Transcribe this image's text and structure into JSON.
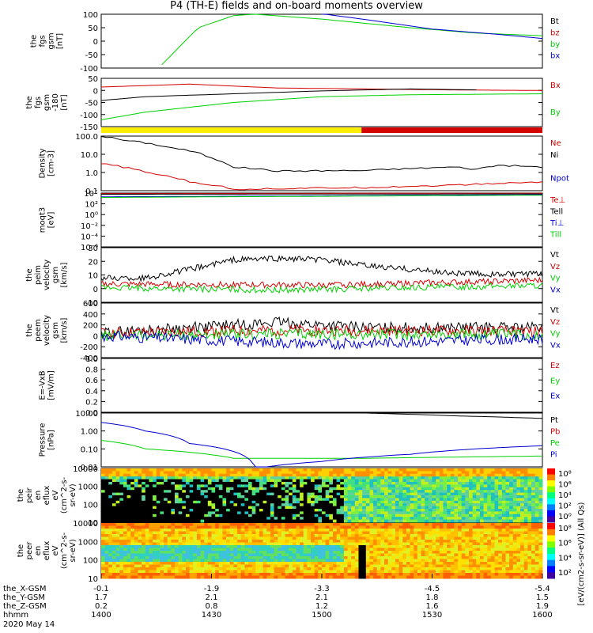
{
  "title": "P4 (TH-E) fields and on-board moments overview",
  "date_label": "2020 May 14",
  "colors": {
    "black": "#000000",
    "red": "#d40000",
    "green": "#00d000",
    "blue": "#0000d0",
    "yellow": "#ffee00"
  },
  "chart_data": [
    {
      "type": "line",
      "ylabel_lines": [
        "the",
        "fgs",
        "gsm",
        "[nT]"
      ],
      "ylim": [
        -100,
        100
      ],
      "yticks": [
        "100",
        "50",
        "0",
        "-50",
        "-100"
      ],
      "series": [
        {
          "name": "Bt",
          "color": "black",
          "values": []
        },
        {
          "name": "bz",
          "color": "red",
          "values": []
        },
        {
          "name": "by",
          "color": "green",
          "values": [
            [
              0.13,
              -100
            ],
            [
              0.22,
              50
            ],
            [
              0.3,
              95
            ],
            [
              0.35,
              100
            ],
            [
              0.5,
              82
            ],
            [
              0.7,
              50
            ],
            [
              0.85,
              30
            ],
            [
              1.0,
              20
            ]
          ]
        },
        {
          "name": "bx",
          "color": "blue",
          "values": [
            [
              0.5,
              102
            ],
            [
              0.6,
              80
            ],
            [
              0.75,
              45
            ],
            [
              0.9,
              25
            ],
            [
              1.0,
              10
            ]
          ]
        }
      ]
    },
    {
      "type": "line",
      "ylabel_lines": [
        "the",
        "fgs",
        "gsm",
        "-180",
        "[nT]"
      ],
      "ylim": [
        -175,
        75
      ],
      "yticks": [
        "50",
        "0",
        "-50",
        "-100",
        "-150"
      ],
      "series": [
        {
          "name": "Bx",
          "color": "red",
          "values": [
            [
              0,
              30
            ],
            [
              0.2,
              45
            ],
            [
              0.4,
              25
            ],
            [
              0.6,
              20
            ],
            [
              0.8,
              15
            ],
            [
              1.0,
              12
            ]
          ]
        },
        {
          "name": "",
          "color": "black",
          "values": [
            [
              0,
              -40
            ],
            [
              0.1,
              -20
            ],
            [
              0.3,
              -5
            ],
            [
              0.5,
              10
            ],
            [
              0.7,
              20
            ],
            [
              0.85,
              15
            ]
          ]
        },
        {
          "name": "By",
          "color": "green",
          "values": [
            [
              0,
              -140
            ],
            [
              0.1,
              -100
            ],
            [
              0.3,
              -50
            ],
            [
              0.5,
              -20
            ],
            [
              0.7,
              -10
            ],
            [
              1.0,
              -5
            ]
          ]
        }
      ]
    },
    {
      "type": "bar_strip",
      "segments": [
        {
          "from": 0,
          "to": 0.59,
          "color": "yellow"
        },
        {
          "from": 0.59,
          "to": 1.0,
          "color": "red"
        }
      ]
    },
    {
      "type": "line",
      "log": true,
      "ylabel_lines": [
        "Density",
        "[cm-3]"
      ],
      "ylim": [
        0.1,
        100
      ],
      "yticks": [
        "100.0",
        "10.0",
        "1.0",
        "0.1"
      ],
      "series": [
        {
          "name": "Ne",
          "color": "red",
          "values": []
        },
        {
          "name": "Ni",
          "color": "black",
          "values": [
            [
              0,
              100
            ],
            [
              0.05,
              60
            ],
            [
              0.15,
              25
            ],
            [
              0.25,
              6
            ],
            [
              0.3,
              2
            ],
            [
              0.4,
              1.2
            ],
            [
              0.6,
              1.3
            ],
            [
              0.8,
              2
            ],
            [
              0.85,
              1.5
            ],
            [
              0.9,
              2.5
            ],
            [
              1.0,
              2
            ]
          ]
        },
        {
          "name": "",
          "color": "red",
          "values": [
            [
              0,
              3
            ],
            [
              0.1,
              1
            ],
            [
              0.2,
              0.3
            ],
            [
              0.3,
              0.12
            ],
            [
              0.6,
              0.15
            ],
            [
              0.8,
              0.2
            ],
            [
              1.0,
              0.3
            ]
          ]
        },
        {
          "name": "Npot",
          "color": "blue",
          "values": []
        }
      ]
    },
    {
      "type": "line",
      "log": true,
      "ylabel_lines": [
        "moqt3",
        "[eV]"
      ],
      "ylim": [
        1e-06,
        10000
      ],
      "yticks": [
        "10´",
        "10²",
        "10⁰",
        "10⁻²",
        "10⁻⁴",
        "10⁻⁶"
      ],
      "series": [
        {
          "name": "Te⊥",
          "color": "red",
          "values": [
            [
              0,
              8000
            ],
            [
              0.6,
              9000
            ],
            [
              1.0,
              9500
            ]
          ]
        },
        {
          "name": "Tell",
          "color": "black",
          "values": [
            [
              0,
              6000
            ],
            [
              1.0,
              7000
            ]
          ]
        },
        {
          "name": "Ti⊥",
          "color": "blue",
          "values": [
            [
              0,
              2000
            ],
            [
              0.5,
              3000
            ],
            [
              1.0,
              5000
            ]
          ]
        },
        {
          "name": "Till",
          "color": "green",
          "values": [
            [
              0,
              1500
            ],
            [
              0.5,
              2500
            ],
            [
              1.0,
              4000
            ]
          ]
        }
      ]
    },
    {
      "type": "line",
      "ylabel_lines": [
        "the",
        "peim",
        "velocity",
        "gsm",
        "[km/s]"
      ],
      "ylim": [
        -15,
        30
      ],
      "yticks": [
        "30",
        "20",
        "10",
        "0",
        "-10"
      ],
      "series": [
        {
          "name": "Vt",
          "color": "black",
          "values": [
            [
              0,
              5
            ],
            [
              0.1,
              5
            ],
            [
              0.2,
              12
            ],
            [
              0.3,
              20
            ],
            [
              0.4,
              21
            ],
            [
              0.5,
              20
            ],
            [
              0.6,
              15
            ],
            [
              0.7,
              12
            ],
            [
              0.8,
              9
            ],
            [
              0.9,
              8
            ],
            [
              1.0,
              8
            ]
          ]
        },
        {
          "name": "Vz",
          "color": "red",
          "values": [
            [
              0,
              0
            ],
            [
              0.5,
              -1
            ],
            [
              1.0,
              3
            ]
          ]
        },
        {
          "name": "Vy",
          "color": "green",
          "values": [
            [
              0,
              -3
            ],
            [
              0.4,
              -5
            ],
            [
              1.0,
              -1
            ]
          ]
        },
        {
          "name": "Vx",
          "color": "blue",
          "values": []
        }
      ]
    },
    {
      "type": "line",
      "ylabel_lines": [
        "the",
        "peem",
        "velocity",
        "gsm",
        "[km/s]"
      ],
      "ylim": [
        -400,
        600
      ],
      "yticks": [
        "600",
        "400",
        "200",
        "0",
        "-200",
        "-400"
      ],
      "series": [
        {
          "name": "Vt",
          "color": "black",
          "values": [
            [
              0,
              50
            ],
            [
              0.2,
              150
            ],
            [
              0.4,
              250
            ],
            [
              0.6,
              150
            ],
            [
              1.0,
              150
            ]
          ]
        },
        {
          "name": "Vz",
          "color": "red",
          "values": [
            [
              0,
              50
            ],
            [
              0.4,
              100
            ],
            [
              1.0,
              80
            ]
          ]
        },
        {
          "name": "Vy",
          "color": "green",
          "values": [
            [
              0,
              0
            ],
            [
              0.4,
              30
            ],
            [
              1.0,
              20
            ]
          ]
        },
        {
          "name": "Vx",
          "color": "blue",
          "values": [
            [
              0,
              0
            ],
            [
              0.3,
              -100
            ],
            [
              0.5,
              -150
            ],
            [
              1.0,
              -50
            ]
          ]
        }
      ]
    },
    {
      "type": "line",
      "ylabel_lines": [
        "E=-VxB",
        "[mV/m]"
      ],
      "ylim": [
        0,
        1
      ],
      "yticks": [
        "1.0",
        "0.8",
        "0.6",
        "0.4",
        "0.2",
        "0.0"
      ],
      "series": [
        {
          "name": "Ez",
          "color": "red",
          "values": []
        },
        {
          "name": "Ey",
          "color": "green",
          "values": []
        },
        {
          "name": "Ex",
          "color": "blue",
          "values": []
        }
      ]
    },
    {
      "type": "line",
      "log": true,
      "ylabel_lines": [
        "Pressure",
        "[nPa]"
      ],
      "ylim": [
        0.01,
        10
      ],
      "yticks": [
        "10.00",
        "1.00",
        "0.10",
        "0.01"
      ],
      "series": [
        {
          "name": "Pt",
          "color": "black",
          "values": [
            [
              0.6,
              10
            ],
            [
              0.8,
              7
            ],
            [
              1.0,
              5
            ]
          ]
        },
        {
          "name": "Pb",
          "color": "red",
          "values": []
        },
        {
          "name": "Pe",
          "color": "green",
          "values": [
            [
              0,
              0.3
            ],
            [
              0.1,
              0.1
            ],
            [
              0.3,
              0.03
            ],
            [
              0.6,
              0.03
            ],
            [
              1.0,
              0.04
            ]
          ]
        },
        {
          "name": "Pi",
          "color": "blue",
          "values": [
            [
              0,
              3
            ],
            [
              0.1,
              1
            ],
            [
              0.2,
              0.2
            ],
            [
              0.35,
              0.008
            ],
            [
              0.5,
              0.02
            ],
            [
              0.7,
              0.05
            ],
            [
              1.0,
              0.15
            ]
          ]
        }
      ]
    },
    {
      "type": "heatmap",
      "ylabel_lines": [
        "the",
        "peir",
        "en",
        "eflux",
        "eV",
        "(cm^2-s-",
        "sr-eV)"
      ],
      "yticks": [
        "10000",
        "1000",
        "100",
        "10"
      ],
      "colorbar_ticks": [
        "10⁸",
        "10⁶",
        "10⁴",
        "10²",
        "10⁰"
      ]
    },
    {
      "type": "heatmap",
      "ylabel_lines": [
        "the",
        "peer",
        "en",
        "eflux",
        "eV",
        "(cm^2-s-",
        "sr-eV)"
      ],
      "yticks": [
        "10000",
        "1000",
        "100",
        "10"
      ],
      "colorbar_ticks": [
        "10⁸",
        "10⁶",
        "10⁴",
        "10²"
      ]
    }
  ],
  "colorbar_label": "[eV/(cm2-s-sr-eV)] (All Qs)",
  "xaxis": {
    "rows": [
      {
        "label": "the_X-GSM",
        "values": [
          "-0.1",
          "-1.9",
          "-3.3",
          "-4.5",
          "-5.4"
        ]
      },
      {
        "label": "the_Y-GSM",
        "values": [
          "1.7",
          "2.1",
          "2.1",
          "1.8",
          "1.5"
        ]
      },
      {
        "label": "the_Z-GSM",
        "values": [
          "0.2",
          "0.8",
          "1.2",
          "1.6",
          "1.9"
        ]
      },
      {
        "label": "hhmm",
        "values": [
          "1400",
          "1430",
          "1500",
          "1530",
          "1600"
        ]
      }
    ]
  }
}
